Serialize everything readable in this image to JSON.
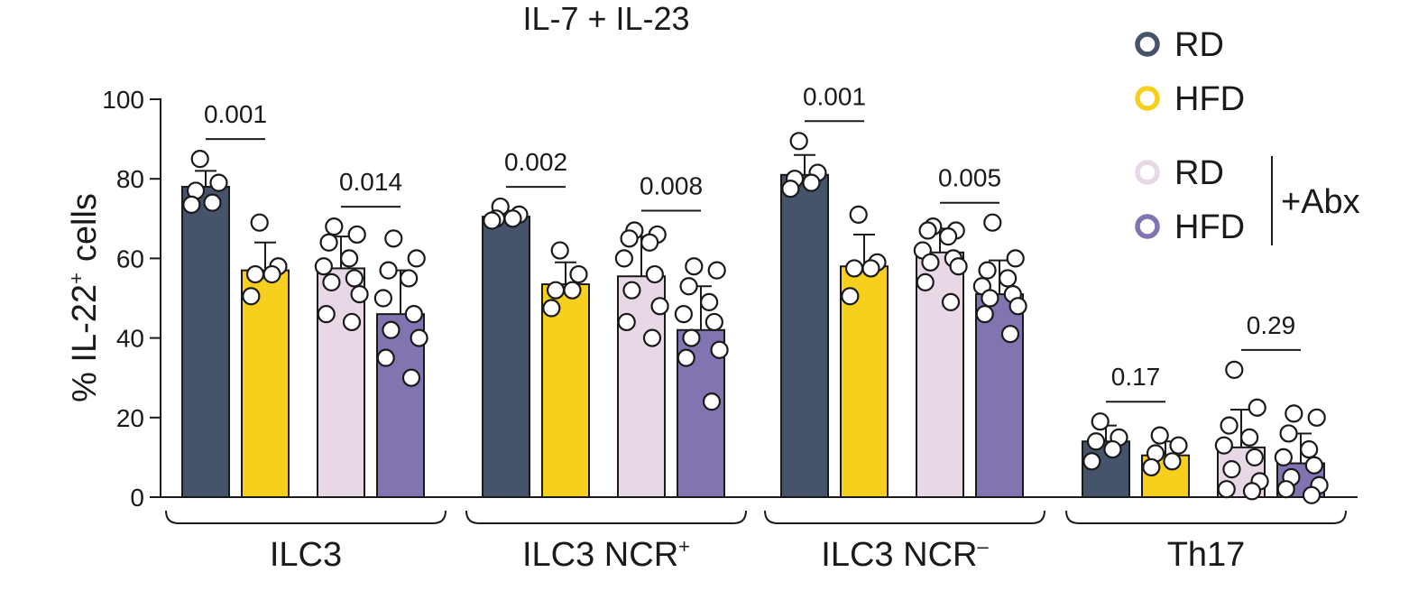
{
  "chart_data": {
    "type": "bar",
    "title": "IL-7 + IL-23",
    "ylabel_prefix": "% IL-22",
    "ylabel_sup": "+",
    "ylabel_suffix": "cells",
    "ylim": [
      0,
      100
    ],
    "yticks": [
      0,
      20,
      40,
      60,
      80,
      100
    ],
    "grid": false,
    "legend_position": "top-right",
    "legend": {
      "items": [
        {
          "label": "RD",
          "color": "#45546a"
        },
        {
          "label": "HFD",
          "color": "#f7cf1d"
        },
        {
          "label": "RD",
          "color": "#e8d8e6"
        },
        {
          "label": "HFD",
          "color": "#8274b1"
        }
      ],
      "bracket_label": "+Abx"
    },
    "series": [
      {
        "name": "RD",
        "color": "#45546a"
      },
      {
        "name": "HFD",
        "color": "#f7cf1d"
      },
      {
        "name": "RD +Abx",
        "color": "#e8d8e6"
      },
      {
        "name": "HFD +Abx",
        "color": "#8274b1"
      }
    ],
    "groups": [
      {
        "label": "ILC3",
        "sup": "",
        "means": [
          78,
          57,
          57.5,
          46
        ],
        "sd": [
          4,
          7,
          8,
          11
        ],
        "points": [
          [
            85,
            79,
            77,
            74,
            73.5
          ],
          [
            69,
            58,
            56,
            56,
            50.5
          ],
          [
            68,
            66,
            64,
            60,
            58,
            55,
            54,
            51,
            46,
            44
          ],
          [
            65,
            60,
            57,
            55,
            50,
            46,
            42,
            40,
            35,
            30
          ]
        ],
        "pvalues": [
          {
            "pair": [
              0,
              1
            ],
            "value": "0.001"
          },
          {
            "pair": [
              2,
              3
            ],
            "value": "0.014"
          }
        ]
      },
      {
        "label": "ILC3 NCR",
        "sup": "+",
        "means": [
          70.5,
          53.5,
          55.5,
          42
        ],
        "sd": [
          1.5,
          5.5,
          10,
          11
        ],
        "points": [
          [
            73,
            71,
            70,
            70,
            69.5
          ],
          [
            62,
            56,
            52,
            52,
            47.5
          ],
          [
            67,
            66,
            65,
            64,
            60,
            56,
            52,
            48,
            44,
            40
          ],
          [
            58,
            57,
            53,
            49,
            46,
            44,
            40,
            37,
            35,
            24
          ]
        ],
        "pvalues": [
          {
            "pair": [
              0,
              1
            ],
            "value": "0.002"
          },
          {
            "pair": [
              2,
              3
            ],
            "value": "0.008"
          }
        ]
      },
      {
        "label": "ILC3 NCR",
        "sup": "–",
        "means": [
          81,
          58,
          61.5,
          51
        ],
        "sd": [
          5,
          8,
          6,
          8.5
        ],
        "points": [
          [
            89.5,
            81.5,
            80,
            79,
            77.5
          ],
          [
            71,
            59,
            57.5,
            57.5,
            50.5
          ],
          [
            68,
            67,
            67,
            65.5,
            62,
            60,
            59,
            58,
            54,
            49
          ],
          [
            69,
            60,
            57,
            55,
            53,
            51,
            50,
            48,
            46,
            41
          ]
        ],
        "pvalues": [
          {
            "pair": [
              0,
              1
            ],
            "value": "0.001"
          },
          {
            "pair": [
              2,
              3
            ],
            "value": "0.005"
          }
        ]
      },
      {
        "label": "Th17",
        "sup": "",
        "means": [
          14,
          10.5,
          12.5,
          8.5
        ],
        "sd": [
          4,
          3.5,
          9.5,
          7.5
        ],
        "points": [
          [
            19,
            15,
            14,
            12,
            9
          ],
          [
            15.5,
            13,
            11,
            9,
            7.5
          ],
          [
            32,
            22.5,
            18,
            15,
            13,
            10,
            7,
            4,
            2,
            1.5
          ],
          [
            21,
            20,
            16,
            12,
            10,
            8,
            5,
            3,
            2,
            0.5
          ]
        ],
        "pvalues": [
          {
            "pair": [
              0,
              1
            ],
            "value": "0.17"
          },
          {
            "pair": [
              2,
              3
            ],
            "value": "0.29"
          }
        ]
      }
    ]
  }
}
